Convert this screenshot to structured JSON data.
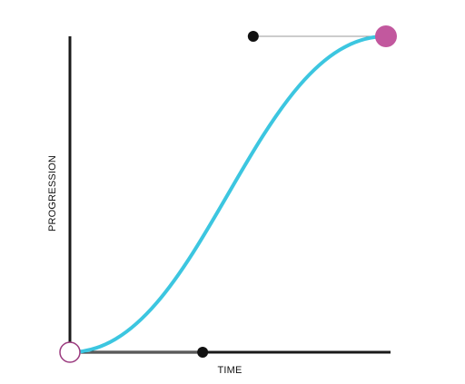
{
  "diagram": {
    "x_axis_label": "TIME",
    "y_axis_label": "PROGRESSION",
    "curve": {
      "type": "cubic-bezier",
      "start_point": [
        0,
        0
      ],
      "control_point_1": [
        0.42,
        0
      ],
      "control_point_2": [
        0.58,
        1
      ],
      "end_point": [
        1,
        1
      ]
    },
    "colors": {
      "curve": "#3CC6E0",
      "axes": "#1a1a1a",
      "handle_line": "#9a9a9a",
      "handle_dot": "#111111",
      "start_point_stroke": "#9B3B7F",
      "end_point_fill": "#C2589E"
    }
  }
}
